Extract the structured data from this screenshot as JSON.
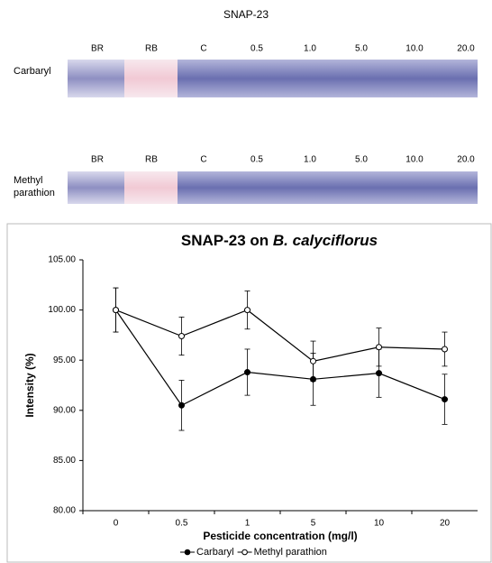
{
  "figure_title": "SNAP-23",
  "blots": [
    {
      "label": [
        "Carbaryl"
      ],
      "lanes": [
        "BR",
        "RB",
        "C",
        "0.5",
        "1.0",
        "5.0",
        "10.0",
        "20.0"
      ]
    },
    {
      "label": [
        "Methyl",
        "parathion"
      ],
      "lanes": [
        "BR",
        "RB",
        "C",
        "0.5",
        "1.0",
        "5.0",
        "10.0",
        "20.0"
      ]
    }
  ],
  "chart_data": {
    "type": "line",
    "title": [
      "SNAP-23 on ",
      "B. calyciflorus"
    ],
    "x_label": "Pesticide concentration (mg/l)",
    "y_label": "Intensity (%)",
    "categories": [
      "0",
      "0.5",
      "1",
      "5",
      "10",
      "20"
    ],
    "ylim": [
      80,
      105
    ],
    "yticks": [
      {
        "value": 80,
        "label": "80.00"
      },
      {
        "value": 85,
        "label": "85.00"
      },
      {
        "value": 90,
        "label": "90.00"
      },
      {
        "value": 95,
        "label": "95.00"
      },
      {
        "value": 100,
        "label": "100.00"
      },
      {
        "value": 105,
        "label": "105.00"
      }
    ],
    "grid": false,
    "legend": "bottom",
    "series": [
      {
        "name": "Carbaryl",
        "color": "#000000",
        "marker_fill": "#000000",
        "values": [
          100,
          90.5,
          93.8,
          93.1,
          93.7,
          91.1
        ],
        "errors": [
          2.2,
          2.5,
          2.3,
          2.6,
          2.4,
          2.5
        ]
      },
      {
        "name": "Methyl parathion",
        "color": "#000000",
        "marker_fill": "#ffffff",
        "values": [
          100,
          97.4,
          100,
          94.9,
          96.3,
          96.1
        ],
        "errors": [
          2.2,
          1.9,
          1.9,
          2.0,
          1.9,
          1.7
        ]
      }
    ]
  }
}
